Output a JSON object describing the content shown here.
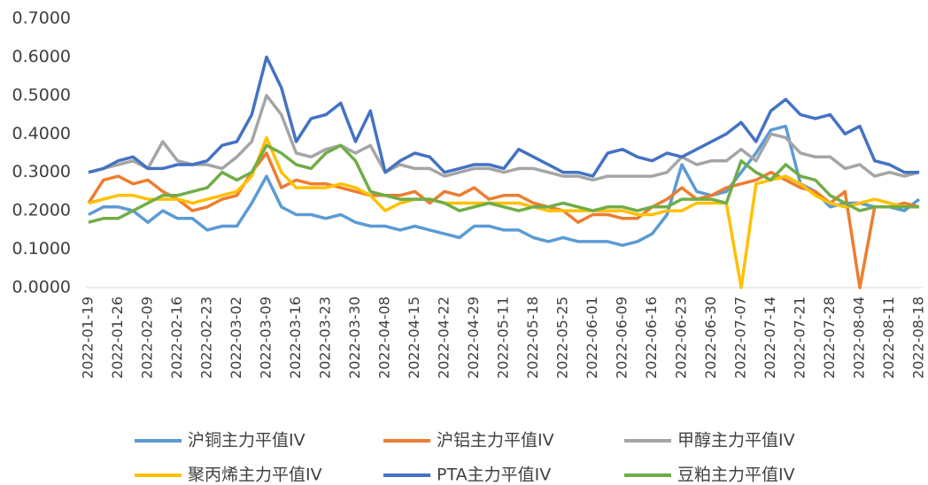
{
  "chart_data": {
    "type": "line",
    "categories": [
      "2022-01-19",
      null,
      "2022-01-26",
      null,
      "2022-02-09",
      null,
      "2022-02-16",
      null,
      "2022-02-23",
      null,
      "2022-03-02",
      null,
      "2022-03-09",
      null,
      "2022-03-16",
      null,
      "2022-03-23",
      null,
      "2022-03-30",
      null,
      "2022-04-08",
      null,
      "2022-04-15",
      null,
      "2022-04-22",
      null,
      "2022-04-29",
      null,
      "2022-05-11",
      null,
      "2022-05-18",
      null,
      "2022-05-25",
      null,
      "2022-06-01",
      null,
      "2022-06-09",
      null,
      "2022-06-16",
      null,
      "2022-06-23",
      null,
      "2022-06-30",
      null,
      "2022-07-07",
      null,
      "2022-07-14",
      null,
      "2022-07-21",
      null,
      "2022-07-28",
      null,
      "2022-08-04",
      null,
      "2022-08-11",
      null,
      "2022-08-18"
    ],
    "ylim": [
      0,
      0.7
    ],
    "yticks": [
      {
        "value": 0,
        "label": "0.0000"
      },
      {
        "value": 0.1,
        "label": "0.1000"
      },
      {
        "value": 0.2,
        "label": "0.2000"
      },
      {
        "value": 0.3,
        "label": "0.3000"
      },
      {
        "value": 0.4,
        "label": "0.4000"
      },
      {
        "value": 0.5,
        "label": "0.5000"
      },
      {
        "value": 0.6,
        "label": "0.6000"
      },
      {
        "value": 0.7,
        "label": "0.7000"
      }
    ],
    "series": [
      {
        "name": "沪铜主力平值IV",
        "color": "#5b9bd5",
        "values": [
          0.19,
          0.21,
          0.21,
          0.2,
          0.17,
          0.2,
          0.18,
          0.18,
          0.15,
          0.16,
          0.16,
          0.22,
          0.29,
          0.21,
          0.19,
          0.19,
          0.18,
          0.19,
          0.17,
          0.16,
          0.16,
          0.15,
          0.16,
          0.15,
          0.14,
          0.13,
          0.16,
          0.16,
          0.15,
          0.15,
          0.13,
          0.12,
          0.13,
          0.12,
          0.12,
          0.12,
          0.11,
          0.12,
          0.14,
          0.19,
          0.32,
          0.25,
          0.24,
          0.25,
          0.3,
          0.35,
          0.41,
          0.42,
          0.27,
          0.25,
          0.21,
          0.22,
          0.22,
          0.21,
          0.21,
          0.2,
          0.23
        ]
      },
      {
        "name": "沪铝主力平值IV",
        "color": "#ed7d31",
        "values": [
          0.22,
          0.28,
          0.29,
          0.27,
          0.28,
          0.25,
          0.23,
          0.2,
          0.21,
          0.23,
          0.24,
          0.3,
          0.35,
          0.26,
          0.28,
          0.27,
          0.27,
          0.26,
          0.25,
          0.24,
          0.24,
          0.24,
          0.25,
          0.22,
          0.25,
          0.24,
          0.26,
          0.23,
          0.24,
          0.24,
          0.22,
          0.21,
          0.2,
          0.17,
          0.19,
          0.19,
          0.18,
          0.18,
          0.21,
          0.23,
          0.26,
          0.23,
          0.24,
          0.26,
          0.27,
          0.28,
          0.3,
          0.28,
          0.26,
          0.25,
          0.22,
          0.25,
          0.0,
          0.21,
          0.21,
          0.22,
          0.21
        ]
      },
      {
        "name": "甲醇主力平值IV",
        "color": "#a5a5a5",
        "values": [
          0.3,
          0.31,
          0.32,
          0.33,
          0.31,
          0.38,
          0.33,
          0.32,
          0.32,
          0.31,
          0.34,
          0.38,
          0.5,
          0.45,
          0.35,
          0.34,
          0.36,
          0.37,
          0.35,
          0.37,
          0.3,
          0.32,
          0.31,
          0.31,
          0.29,
          0.3,
          0.31,
          0.31,
          0.3,
          0.31,
          0.31,
          0.3,
          0.29,
          0.29,
          0.28,
          0.29,
          0.29,
          0.29,
          0.29,
          0.3,
          0.34,
          0.32,
          0.33,
          0.33,
          0.36,
          0.33,
          0.4,
          0.39,
          0.35,
          0.34,
          0.34,
          0.31,
          0.32,
          0.29,
          0.3,
          0.29,
          0.3
        ]
      },
      {
        "name": "聚丙烯主力平值IV",
        "color": "#ffc000",
        "values": [
          0.22,
          0.23,
          0.24,
          0.24,
          0.23,
          0.23,
          0.23,
          0.22,
          0.23,
          0.24,
          0.25,
          0.29,
          0.39,
          0.3,
          0.26,
          0.26,
          0.26,
          0.27,
          0.26,
          0.24,
          0.2,
          0.22,
          0.23,
          0.23,
          0.22,
          0.22,
          0.22,
          0.22,
          0.22,
          0.22,
          0.21,
          0.2,
          0.2,
          0.2,
          0.2,
          0.2,
          0.2,
          0.19,
          0.19,
          0.2,
          0.2,
          0.22,
          0.22,
          0.22,
          0.0,
          0.27,
          0.28,
          0.29,
          0.27,
          0.24,
          0.22,
          0.21,
          0.22,
          0.23,
          0.22,
          0.21,
          0.21
        ]
      },
      {
        "name": "PTA主力平值IV",
        "color": "#4472c4",
        "values": [
          0.3,
          0.31,
          0.33,
          0.34,
          0.31,
          0.31,
          0.32,
          0.32,
          0.33,
          0.37,
          0.38,
          0.45,
          0.6,
          0.52,
          0.38,
          0.44,
          0.45,
          0.48,
          0.38,
          0.46,
          0.3,
          0.33,
          0.35,
          0.34,
          0.3,
          0.31,
          0.32,
          0.32,
          0.31,
          0.36,
          0.34,
          0.32,
          0.3,
          0.3,
          0.29,
          0.35,
          0.36,
          0.34,
          0.33,
          0.35,
          0.34,
          0.36,
          0.38,
          0.4,
          0.43,
          0.38,
          0.46,
          0.49,
          0.45,
          0.44,
          0.45,
          0.4,
          0.42,
          0.33,
          0.32,
          0.3,
          0.3
        ]
      },
      {
        "name": "豆粕主力平值IV",
        "color": "#70ad47",
        "values": [
          0.17,
          0.18,
          0.18,
          0.2,
          0.22,
          0.24,
          0.24,
          0.25,
          0.26,
          0.3,
          0.28,
          0.3,
          0.37,
          0.35,
          0.32,
          0.31,
          0.35,
          0.37,
          0.33,
          0.25,
          0.24,
          0.23,
          0.23,
          0.23,
          0.22,
          0.2,
          0.21,
          0.22,
          0.21,
          0.2,
          0.21,
          0.21,
          0.22,
          0.21,
          0.2,
          0.21,
          0.21,
          0.2,
          0.21,
          0.21,
          0.23,
          0.23,
          0.23,
          0.22,
          0.33,
          0.3,
          0.28,
          0.32,
          0.29,
          0.28,
          0.24,
          0.22,
          0.2,
          0.21,
          0.21,
          0.21,
          0.21
        ]
      }
    ]
  }
}
